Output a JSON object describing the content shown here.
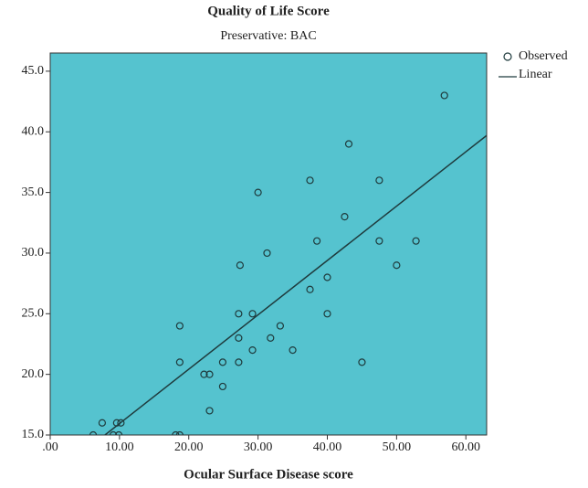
{
  "chart_data": {
    "type": "scatter",
    "title": "Quality of Life Score",
    "subtitle": "Preservative: BAC",
    "x_label": "Ocular Surface Disease score",
    "xlim": [
      0,
      63
    ],
    "ylim": [
      15,
      46.5
    ],
    "xticks": [
      {
        "value": 0,
        "label": ".00"
      },
      {
        "value": 10,
        "label": "10.00"
      },
      {
        "value": 20,
        "label": "20.00"
      },
      {
        "value": 30,
        "label": "30.00"
      },
      {
        "value": 40,
        "label": "40.00"
      },
      {
        "value": 50,
        "label": "50.00"
      },
      {
        "value": 60,
        "label": "60.00"
      }
    ],
    "yticks": [
      {
        "value": 15,
        "label": "15.0"
      },
      {
        "value": 20,
        "label": "20.0"
      },
      {
        "value": 25,
        "label": "25.0"
      },
      {
        "value": 30,
        "label": "30.0"
      },
      {
        "value": 35,
        "label": "35.0"
      },
      {
        "value": 40,
        "label": "40.0"
      },
      {
        "value": 45,
        "label": "45.0"
      }
    ],
    "background": "#55c3cf",
    "series": [
      {
        "name": "Observed",
        "kind": "points",
        "color": "#1f3b3d",
        "x": [
          6.2,
          7.5,
          9.1,
          9.6,
          10.2,
          9.9,
          18.1,
          18.7,
          18.7,
          18.7,
          22.2,
          23,
          23,
          24.9,
          24.9,
          27.2,
          27.2,
          27.2,
          27.4,
          29.2,
          29.2,
          30,
          31.3,
          31.8,
          33.2,
          35,
          37.5,
          37.5,
          38.5,
          40,
          40,
          42.5,
          43.1,
          45,
          47.5,
          47.5,
          50,
          52.8,
          56.9
        ],
        "values": [
          15,
          16,
          15,
          16,
          16,
          15,
          15,
          15,
          21,
          24,
          20,
          20,
          17,
          19,
          21,
          21,
          23,
          25,
          29,
          25,
          22,
          35,
          30,
          23,
          24,
          22,
          27,
          36,
          31,
          28,
          25,
          33,
          39,
          21,
          36,
          31,
          29,
          31,
          43
        ]
      },
      {
        "name": "Linear",
        "kind": "line",
        "color": "#1f3b3d",
        "x": [
          7.9,
          63
        ],
        "values": [
          15,
          39.7
        ]
      }
    ]
  }
}
